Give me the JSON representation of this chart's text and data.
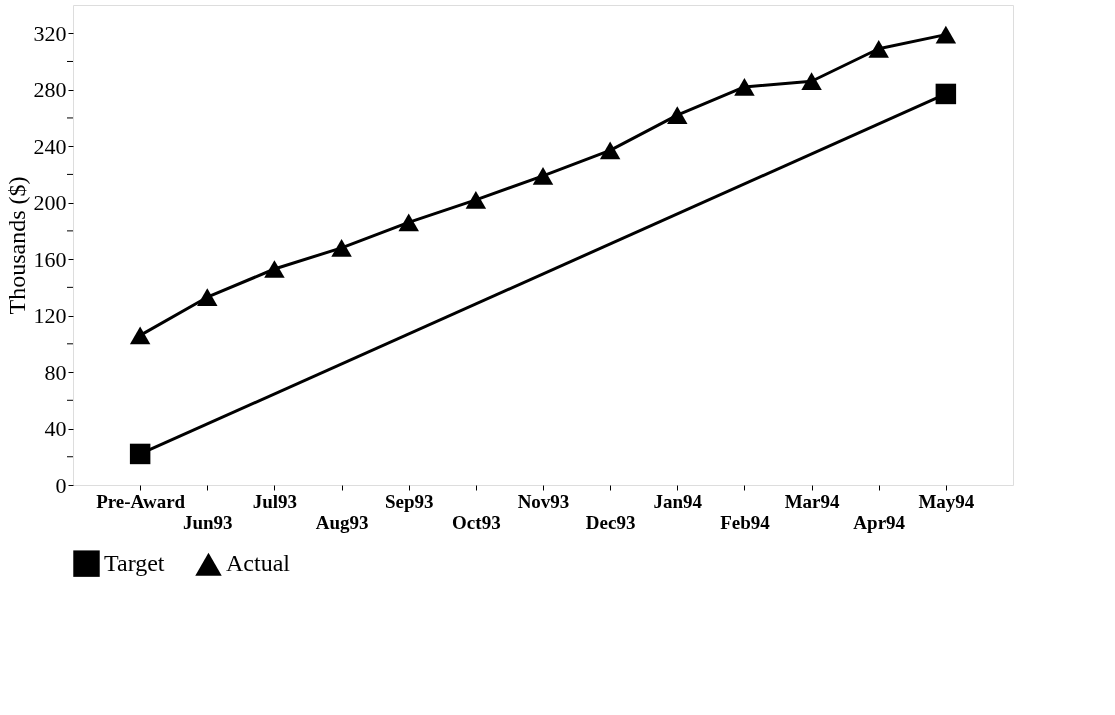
{
  "chart_data": {
    "type": "line",
    "ylabel": "Thousands ($)",
    "categories": [
      "Pre-Award",
      "Jun93",
      "Jul93",
      "Aug93",
      "Sep93",
      "Oct93",
      "Nov93",
      "Dec93",
      "Jan94",
      "Feb94",
      "Mar94",
      "Apr94",
      "May94"
    ],
    "series": [
      {
        "name": "Target",
        "color": "#000000",
        "marker": "square",
        "x": [
          "Pre-Award",
          "May94"
        ],
        "values": [
          22,
          277
        ]
      },
      {
        "name": "Actual",
        "color": "#000000",
        "marker": "triangle",
        "values": [
          106,
          133,
          153,
          168,
          186,
          202,
          219,
          237,
          262,
          282,
          286,
          309,
          319
        ]
      }
    ],
    "ylim": [
      0,
      340
    ],
    "yticks": [
      0,
      {
        "value": 20,
        "label": null
      },
      40,
      {
        "value": 60,
        "label": null
      },
      80,
      {
        "value": 100,
        "label": null
      },
      120,
      {
        "value": 140,
        "label": null
      },
      160,
      {
        "value": 180,
        "label": null
      },
      200,
      {
        "value": 220,
        "label": null
      },
      240,
      {
        "value": 260,
        "label": null
      },
      280,
      {
        "value": 300,
        "label": null
      },
      320
    ],
    "grid": false,
    "legend": "bottom",
    "line_style": "solid"
  }
}
